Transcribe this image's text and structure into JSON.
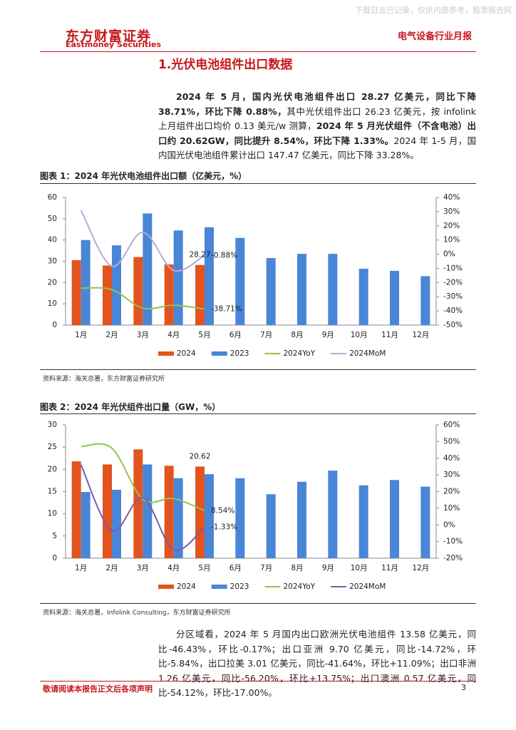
{
  "header": {
    "watermark": "下载日志已记录，仅供内部参考，股票报告网",
    "logo": "东方财富证券",
    "logo_en": "Eastmoney Securities",
    "report_type": "电气设备行业月报"
  },
  "section_title": "1.光伏电池组件出口数据",
  "paragraph1": [
    {
      "text": "2024 年 5 月，国内光伏电池组件出口 28.27 亿美元，同比下降 38.71%，环比下降 0.88%，",
      "bold": true
    },
    {
      "text": "其中光伏组件出口 26.23 亿美元，按 infolink 上月组件出口均价 0.13 美元/w 测算，",
      "bold": false
    },
    {
      "text": "2024 年 5 月光伏组件（不含电池）出口约 20.62GW，同比提升 8.54%，环比下降 1.33%。",
      "bold": true
    },
    {
      "text": "2024 年 1-5 月，国内国光伏电池组件累计出口 147.47 亿美元，同比下降 33.28%。",
      "bold": false
    }
  ],
  "chart_data": [
    {
      "type": "bar",
      "title": "图表 1：2024 年光伏电池组件出口额（亿美元，%）",
      "source": "资料来源：海关总署，东方财富证券研究所",
      "categories": [
        "1月",
        "2月",
        "3月",
        "4月",
        "5月",
        "6月",
        "7月",
        "8月",
        "9月",
        "10月",
        "11月",
        "12月"
      ],
      "ylim": [
        0,
        60
      ],
      "yticks": [
        0,
        10,
        20,
        30,
        40,
        50,
        60
      ],
      "y2lim": [
        -50,
        40
      ],
      "y2ticks": [
        {
          "value": -50,
          "label": "-50%"
        },
        {
          "value": -40,
          "label": "-40%"
        },
        {
          "value": -30,
          "label": "-30%"
        },
        {
          "value": -20,
          "label": "-20%"
        },
        {
          "value": -10,
          "label": "-10%"
        },
        {
          "value": 0,
          "label": "0%"
        },
        {
          "value": 10,
          "label": "10%"
        },
        {
          "value": 20,
          "label": "20%"
        },
        {
          "value": 30,
          "label": "30%"
        },
        {
          "value": 40,
          "label": "40%"
        }
      ],
      "legend": "bottom",
      "series": [
        {
          "name": "2024",
          "type": "bar",
          "color": "#e2541f",
          "values": [
            30.5,
            28,
            32,
            28.5,
            28.27,
            null,
            null,
            null,
            null,
            null,
            null,
            null
          ],
          "value_labels": [
            null,
            null,
            null,
            null,
            "28.27",
            null,
            null,
            null,
            null,
            null,
            null,
            null
          ]
        },
        {
          "name": "2023",
          "type": "bar",
          "color": "#4a86d8",
          "values": [
            40,
            37.5,
            52.5,
            44.5,
            46,
            41,
            31.5,
            33.5,
            33.5,
            26.5,
            25.5,
            23
          ]
        },
        {
          "name": "2024YoY",
          "type": "line",
          "axis": "y2",
          "color": "#92c353",
          "values": [
            -24,
            -25,
            -38,
            -36,
            -38.71,
            null,
            null,
            null,
            null,
            null,
            null,
            null
          ],
          "value_labels": [
            null,
            null,
            null,
            null,
            "-38.71%",
            null,
            null,
            null,
            null,
            null,
            null,
            null
          ]
        },
        {
          "name": "2024MoM",
          "type": "line",
          "axis": "y2",
          "color": "#b9aad6",
          "values": [
            31,
            -8.5,
            15.5,
            -11.5,
            -0.88,
            null,
            null,
            null,
            null,
            null,
            null,
            null
          ],
          "value_labels": [
            null,
            null,
            null,
            null,
            "-0.88%",
            null,
            null,
            null,
            null,
            null,
            null,
            null
          ]
        }
      ]
    },
    {
      "type": "bar",
      "title": "图表 2：2024 年光伏组件出口量（GW，%）",
      "source": "资料来源：海关总署，Infolink Consulting，东方财富证券研究所",
      "categories": [
        "1月",
        "2月",
        "3月",
        "4月",
        "5月",
        "6月",
        "7月",
        "8月",
        "9月",
        "10月",
        "11月",
        "12月"
      ],
      "ylim": [
        0,
        30
      ],
      "yticks": [
        0,
        5,
        10,
        15,
        20,
        25,
        30
      ],
      "y2lim": [
        -20,
        60
      ],
      "y2ticks": [
        {
          "value": -20,
          "label": "-20%"
        },
        {
          "value": -10,
          "label": "-10%"
        },
        {
          "value": 0,
          "label": "0%"
        },
        {
          "value": 10,
          "label": "10%"
        },
        {
          "value": 20,
          "label": "20%"
        },
        {
          "value": 30,
          "label": "30%"
        },
        {
          "value": 40,
          "label": "40%"
        },
        {
          "value": 50,
          "label": "50%"
        },
        {
          "value": 60,
          "label": "60%"
        }
      ],
      "legend": "bottom",
      "series": [
        {
          "name": "2024",
          "type": "bar",
          "color": "#e2541f",
          "values": [
            21.8,
            21.1,
            24.5,
            20.8,
            20.62,
            null,
            null,
            null,
            null,
            null,
            null,
            null
          ],
          "value_labels": [
            null,
            null,
            null,
            null,
            "20.62",
            null,
            null,
            null,
            null,
            null,
            null,
            null
          ]
        },
        {
          "name": "2023",
          "type": "bar",
          "color": "#4a86d8",
          "values": [
            14.9,
            15.4,
            21.1,
            18,
            18.9,
            18,
            14.4,
            17.2,
            19.7,
            16.4,
            17.6,
            16.1
          ]
        },
        {
          "name": "2024YoY",
          "type": "line",
          "axis": "y2",
          "color": "#92c353",
          "values": [
            47,
            46,
            15.4,
            15.8,
            8.54,
            null,
            null,
            null,
            null,
            null,
            null,
            null
          ],
          "value_labels": [
            null,
            null,
            null,
            null,
            "8.54%",
            null,
            null,
            null,
            null,
            null,
            null,
            null
          ]
        },
        {
          "name": "2024MoM",
          "type": "line",
          "axis": "y2",
          "color": "#7a5bab",
          "values": [
            36,
            -3.4,
            16.2,
            -15,
            -1.33,
            null,
            null,
            null,
            null,
            null,
            null,
            null
          ],
          "value_labels": [
            null,
            null,
            null,
            null,
            "-1.33%",
            null,
            null,
            null,
            null,
            null,
            null,
            null
          ]
        }
      ]
    }
  ],
  "paragraph2": "分区域看，2024 年 5 月国内出口欧洲光伏电池组件 13.58 亿美元，同比-46.43%，环比-0.17%；出口亚洲 9.70 亿美元，同比-14.72%，环比-5.84%，出口拉美 3.01 亿美元，同比-41.64%，环比+11.09%；出口非洲 1.26 亿美元，同比-56.20%，环比+13.75%；出口澳洲 0.57 亿美元，同比-54.12%，环比-17.00%。",
  "footer": {
    "disclaimer": "敬请阅读本报告正文后各项声明",
    "page": "3"
  }
}
